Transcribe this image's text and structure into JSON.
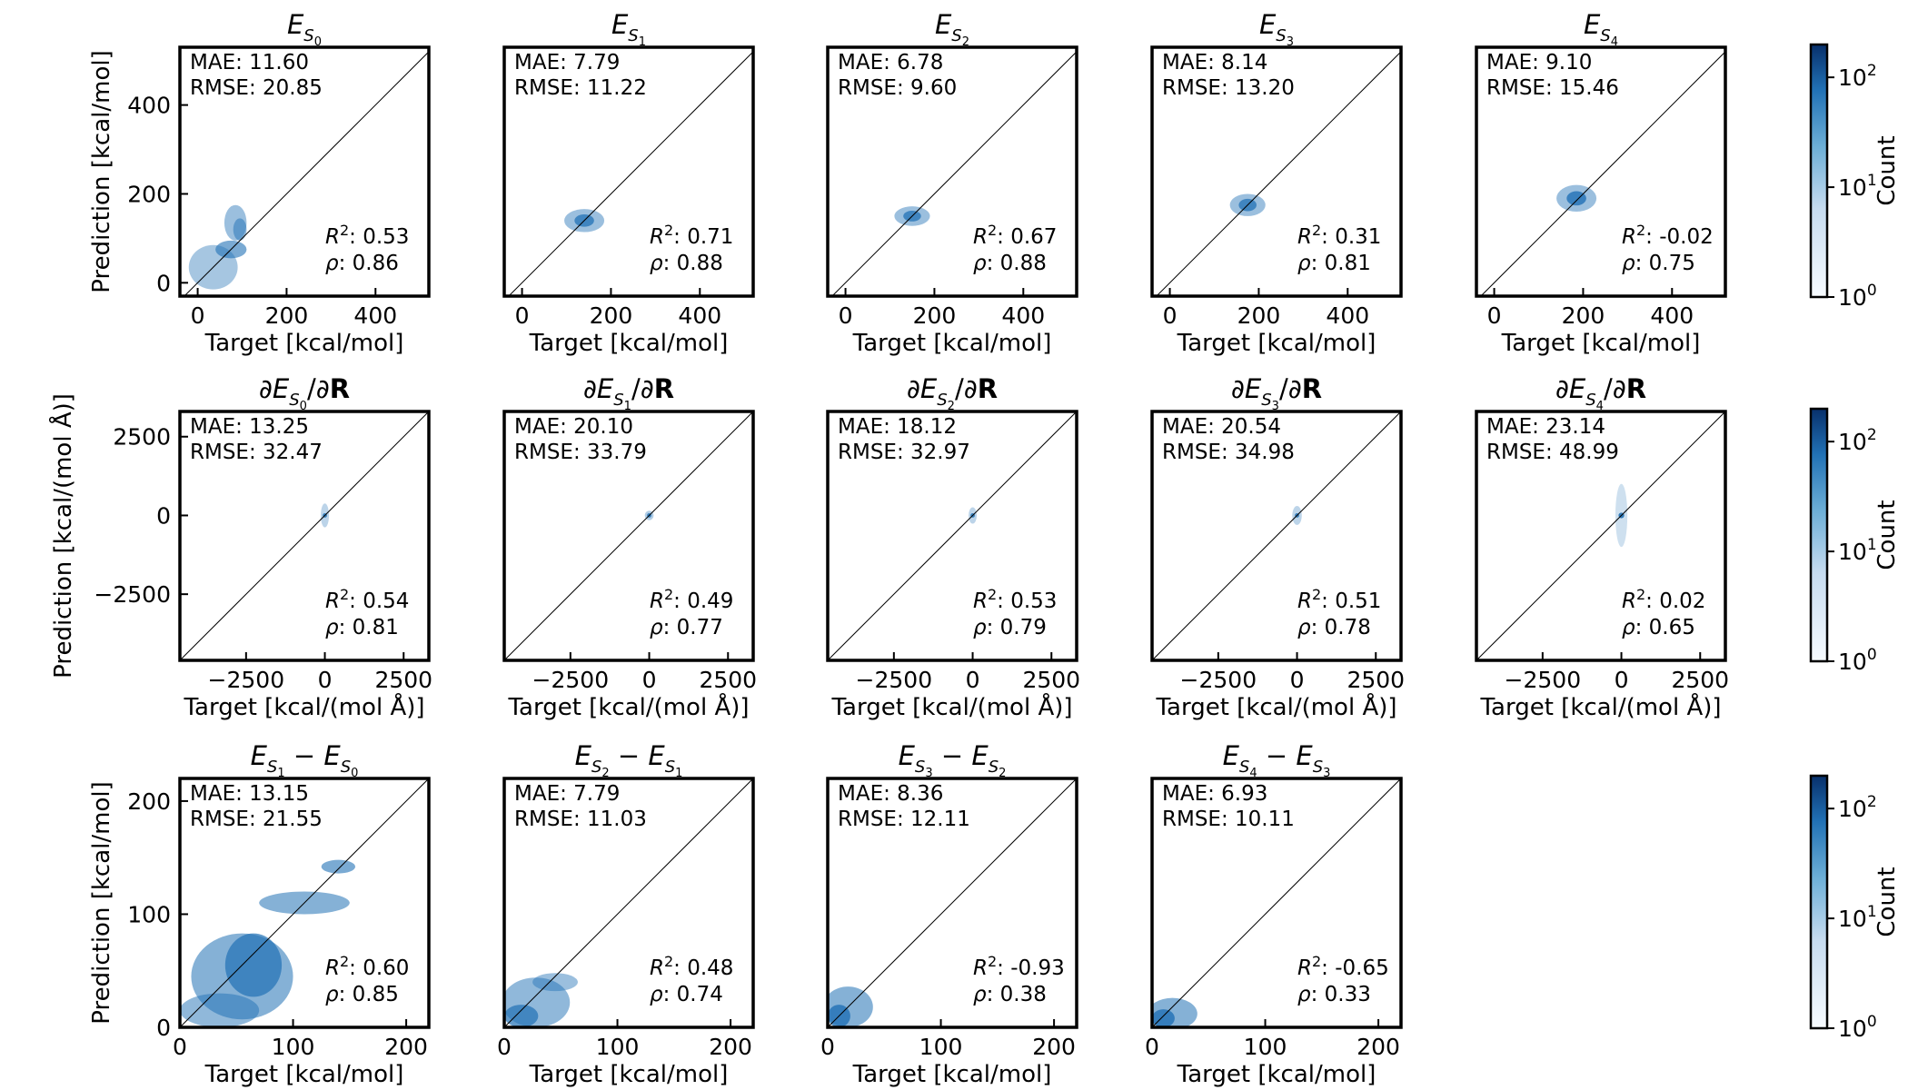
{
  "chart_data": [
    {
      "type": "hexbin",
      "title": {
        "base": "E",
        "sub": "S",
        "subsub": "0"
      },
      "xlabel": "Target [kcal/mol]",
      "ylabel": "Prediction [kcal/mol]",
      "xlim": [
        -40,
        520
      ],
      "ylim": [
        -30,
        530
      ],
      "xticks": [
        0,
        200,
        400
      ],
      "yticks": [
        0,
        200,
        400
      ],
      "stats": {
        "MAE": "11.60",
        "RMSE": "20.85",
        "R2": "0.53",
        "rho": "0.86"
      },
      "density": [
        {
          "cx": 35,
          "cy": 35,
          "rx": 55,
          "ry": 50,
          "a": 0.4
        },
        {
          "cx": 75,
          "cy": 75,
          "rx": 35,
          "ry": 20,
          "a": 0.6
        },
        {
          "cx": 85,
          "cy": 135,
          "rx": 25,
          "ry": 40,
          "a": 0.45
        },
        {
          "cx": 95,
          "cy": 120,
          "rx": 15,
          "ry": 25,
          "a": 0.5
        }
      ]
    },
    {
      "type": "hexbin",
      "title": {
        "base": "E",
        "sub": "S",
        "subsub": "1"
      },
      "xlabel": "Target [kcal/mol]",
      "ylabel": "",
      "xlim": [
        -40,
        520
      ],
      "ylim": [
        -30,
        530
      ],
      "xticks": [
        0,
        200,
        400
      ],
      "yticks": [],
      "stats": {
        "MAE": "7.79",
        "RMSE": "11.22",
        "R2": "0.71",
        "rho": "0.88"
      },
      "density": [
        {
          "cx": 140,
          "cy": 140,
          "rx": 45,
          "ry": 26,
          "a": 0.45
        },
        {
          "cx": 140,
          "cy": 140,
          "rx": 22,
          "ry": 14,
          "a": 0.75
        }
      ]
    },
    {
      "type": "hexbin",
      "title": {
        "base": "E",
        "sub": "S",
        "subsub": "2"
      },
      "xlabel": "Target [kcal/mol]",
      "ylabel": "",
      "xlim": [
        -40,
        520
      ],
      "ylim": [
        -30,
        530
      ],
      "xticks": [
        0,
        200,
        400
      ],
      "yticks": [],
      "stats": {
        "MAE": "6.78",
        "RMSE": "9.60",
        "R2": "0.67",
        "rho": "0.88"
      },
      "density": [
        {
          "cx": 150,
          "cy": 150,
          "rx": 40,
          "ry": 22,
          "a": 0.45
        },
        {
          "cx": 150,
          "cy": 150,
          "rx": 20,
          "ry": 12,
          "a": 0.75
        }
      ]
    },
    {
      "type": "hexbin",
      "title": {
        "base": "E",
        "sub": "S",
        "subsub": "3"
      },
      "xlabel": "Target [kcal/mol]",
      "ylabel": "",
      "xlim": [
        -40,
        520
      ],
      "ylim": [
        -30,
        530
      ],
      "xticks": [
        0,
        200,
        400
      ],
      "yticks": [],
      "stats": {
        "MAE": "8.14",
        "RMSE": "13.20",
        "R2": "0.31",
        "rho": "0.81"
      },
      "density": [
        {
          "cx": 175,
          "cy": 175,
          "rx": 40,
          "ry": 25,
          "a": 0.45
        },
        {
          "cx": 175,
          "cy": 175,
          "rx": 20,
          "ry": 14,
          "a": 0.75
        }
      ]
    },
    {
      "type": "hexbin",
      "title": {
        "base": "E",
        "sub": "S",
        "subsub": "4"
      },
      "xlabel": "Target [kcal/mol]",
      "ylabel": "",
      "xlim": [
        -40,
        520
      ],
      "ylim": [
        -30,
        530
      ],
      "xticks": [
        0,
        200,
        400
      ],
      "yticks": [],
      "stats": {
        "MAE": "9.10",
        "RMSE": "15.46",
        "R2": "-0.02",
        "rho": "0.75"
      },
      "density": [
        {
          "cx": 185,
          "cy": 190,
          "rx": 45,
          "ry": 30,
          "a": 0.45
        },
        {
          "cx": 185,
          "cy": 190,
          "rx": 22,
          "ry": 16,
          "a": 0.8
        }
      ]
    },
    {
      "type": "hexbin",
      "title": {
        "pre": "∂",
        "base": "E",
        "sub": "S",
        "subsub": "0",
        "post": "/∂",
        "bold": "R"
      },
      "xlabel": "Target [kcal/(mol Å)]",
      "ylabel": "Prediction [kcal/(mol Å)]",
      "xlim": [
        -4600,
        3300
      ],
      "ylim": [
        -4600,
        3300
      ],
      "xticks": [
        -2500,
        0,
        2500
      ],
      "yticks": [
        -2500,
        0,
        2500
      ],
      "stats": {
        "MAE": "13.25",
        "RMSE": "32.47",
        "R2": "0.54",
        "rho": "0.81"
      },
      "density": [
        {
          "cx": 0,
          "cy": 0,
          "rx": 130,
          "ry": 380,
          "a": 0.3
        },
        {
          "cx": 0,
          "cy": 0,
          "rx": 70,
          "ry": 70,
          "a": 0.85
        }
      ]
    },
    {
      "type": "hexbin",
      "title": {
        "pre": "∂",
        "base": "E",
        "sub": "S",
        "subsub": "1",
        "post": "/∂",
        "bold": "R"
      },
      "xlabel": "Target [kcal/(mol Å)]",
      "ylabel": "",
      "xlim": [
        -4600,
        3300
      ],
      "ylim": [
        -4600,
        3300
      ],
      "xticks": [
        -2500,
        0,
        2500
      ],
      "yticks": [],
      "stats": {
        "MAE": "20.10",
        "RMSE": "33.79",
        "R2": "0.49",
        "rho": "0.77"
      },
      "density": [
        {
          "cx": 0,
          "cy": 0,
          "rx": 140,
          "ry": 150,
          "a": 0.35
        },
        {
          "cx": 0,
          "cy": 0,
          "rx": 70,
          "ry": 70,
          "a": 0.85
        }
      ]
    },
    {
      "type": "hexbin",
      "title": {
        "pre": "∂",
        "base": "E",
        "sub": "S",
        "subsub": "2",
        "post": "/∂",
        "bold": "R"
      },
      "xlabel": "Target [kcal/(mol Å)]",
      "ylabel": "",
      "xlim": [
        -4600,
        3300
      ],
      "ylim": [
        -4600,
        3300
      ],
      "xticks": [
        -2500,
        0,
        2500
      ],
      "yticks": [],
      "stats": {
        "MAE": "18.12",
        "RMSE": "32.97",
        "R2": "0.53",
        "rho": "0.79"
      },
      "density": [
        {
          "cx": 0,
          "cy": 0,
          "rx": 130,
          "ry": 260,
          "a": 0.3
        },
        {
          "cx": 0,
          "cy": 0,
          "rx": 70,
          "ry": 70,
          "a": 0.85
        }
      ]
    },
    {
      "type": "hexbin",
      "title": {
        "pre": "∂",
        "base": "E",
        "sub": "S",
        "subsub": "3",
        "post": "/∂",
        "bold": "R"
      },
      "xlabel": "Target [kcal/(mol Å)]",
      "ylabel": "",
      "xlim": [
        -4600,
        3300
      ],
      "ylim": [
        -4600,
        3300
      ],
      "xticks": [
        -2500,
        0,
        2500
      ],
      "yticks": [],
      "stats": {
        "MAE": "20.54",
        "RMSE": "34.98",
        "R2": "0.51",
        "rho": "0.78"
      },
      "density": [
        {
          "cx": 0,
          "cy": 0,
          "rx": 150,
          "ry": 300,
          "a": 0.3
        },
        {
          "cx": 0,
          "cy": 0,
          "rx": 70,
          "ry": 70,
          "a": 0.85
        }
      ]
    },
    {
      "type": "hexbin",
      "title": {
        "pre": "∂",
        "base": "E",
        "sub": "S",
        "subsub": "4",
        "post": "/∂",
        "bold": "R"
      },
      "xlabel": "Target [kcal/(mol Å)]",
      "ylabel": "",
      "xlim": [
        -4600,
        3300
      ],
      "ylim": [
        -4600,
        3300
      ],
      "xticks": [
        -2500,
        0,
        2500
      ],
      "yticks": [],
      "stats": {
        "MAE": "23.14",
        "RMSE": "48.99",
        "R2": "0.02",
        "rho": "0.65"
      },
      "density": [
        {
          "cx": 0,
          "cy": 0,
          "rx": 190,
          "ry": 1000,
          "a": 0.22
        },
        {
          "cx": 0,
          "cy": 0,
          "rx": 90,
          "ry": 90,
          "a": 0.9
        }
      ]
    },
    {
      "type": "hexbin",
      "title": {
        "base": "E",
        "sub": "S",
        "subsub": "1",
        "minus": true,
        "base2": "E",
        "sub2": "S",
        "subsub2": "0"
      },
      "xlabel": "Target [kcal/mol]",
      "ylabel": "Prediction [kcal/mol]",
      "xlim": [
        0,
        220
      ],
      "ylim": [
        0,
        220
      ],
      "xticks": [
        0,
        100,
        200
      ],
      "yticks": [
        0,
        100,
        200
      ],
      "stats": {
        "MAE": "13.15",
        "RMSE": "21.55",
        "R2": "0.60",
        "rho": "0.85"
      },
      "density": [
        {
          "cx": 55,
          "cy": 45,
          "rx": 45,
          "ry": 38,
          "a": 0.55
        },
        {
          "cx": 65,
          "cy": 55,
          "rx": 25,
          "ry": 28,
          "a": 0.7
        },
        {
          "cx": 110,
          "cy": 110,
          "rx": 40,
          "ry": 10,
          "a": 0.55
        },
        {
          "cx": 35,
          "cy": 15,
          "rx": 35,
          "ry": 15,
          "a": 0.5
        },
        {
          "cx": 140,
          "cy": 142,
          "rx": 15,
          "ry": 6,
          "a": 0.6
        }
      ]
    },
    {
      "type": "hexbin",
      "title": {
        "base": "E",
        "sub": "S",
        "subsub": "2",
        "minus": true,
        "base2": "E",
        "sub2": "S",
        "subsub2": "1"
      },
      "xlabel": "Target [kcal/mol]",
      "ylabel": "",
      "xlim": [
        0,
        220
      ],
      "ylim": [
        0,
        220
      ],
      "xticks": [
        0,
        100,
        200
      ],
      "yticks": [],
      "stats": {
        "MAE": "7.79",
        "RMSE": "11.03",
        "R2": "0.48",
        "rho": "0.74"
      },
      "density": [
        {
          "cx": 28,
          "cy": 22,
          "rx": 30,
          "ry": 22,
          "a": 0.5
        },
        {
          "cx": 15,
          "cy": 10,
          "rx": 15,
          "ry": 10,
          "a": 0.7
        },
        {
          "cx": 45,
          "cy": 40,
          "rx": 20,
          "ry": 8,
          "a": 0.45
        }
      ]
    },
    {
      "type": "hexbin",
      "title": {
        "base": "E",
        "sub": "S",
        "subsub": "3",
        "minus": true,
        "base2": "E",
        "sub2": "S",
        "subsub2": "2"
      },
      "xlabel": "Target [kcal/mol]",
      "ylabel": "",
      "xlim": [
        0,
        220
      ],
      "ylim": [
        0,
        220
      ],
      "xticks": [
        0,
        100,
        200
      ],
      "yticks": [],
      "stats": {
        "MAE": "8.36",
        "RMSE": "12.11",
        "R2": "-0.93",
        "rho": "0.38"
      },
      "density": [
        {
          "cx": 18,
          "cy": 18,
          "rx": 22,
          "ry": 18,
          "a": 0.55
        },
        {
          "cx": 10,
          "cy": 10,
          "rx": 10,
          "ry": 10,
          "a": 0.8
        }
      ]
    },
    {
      "type": "hexbin",
      "title": {
        "base": "E",
        "sub": "S",
        "subsub": "4",
        "minus": true,
        "base2": "E",
        "sub2": "S",
        "subsub2": "3"
      },
      "xlabel": "Target [kcal/mol]",
      "ylabel": "",
      "xlim": [
        0,
        220
      ],
      "ylim": [
        0,
        220
      ],
      "xticks": [
        0,
        100,
        200
      ],
      "yticks": [],
      "stats": {
        "MAE": "6.93",
        "RMSE": "10.11",
        "R2": "-0.65",
        "rho": "0.33"
      },
      "density": [
        {
          "cx": 18,
          "cy": 12,
          "rx": 22,
          "ry": 14,
          "a": 0.55
        },
        {
          "cx": 10,
          "cy": 8,
          "rx": 10,
          "ry": 8,
          "a": 0.8
        }
      ]
    }
  ],
  "colorbar": {
    "label": "Count",
    "ticks": [
      {
        "base": "10",
        "exp": "0"
      },
      {
        "base": "10",
        "exp": "1"
      },
      {
        "base": "10",
        "exp": "2"
      }
    ],
    "scale": "log",
    "cmap": "Blues"
  },
  "stat_labels": {
    "mae": "MAE: ",
    "rmse": "RMSE: ",
    "r2_tail": ": ",
    "rho_tail": ": "
  },
  "colors": {
    "cmap_light": "#f7fbff",
    "cmap_mid": "#6baed6",
    "cmap_dark": "#08306b",
    "hex_base": "#2171b5",
    "axis": "#000000",
    "diagonal": "#000000"
  }
}
